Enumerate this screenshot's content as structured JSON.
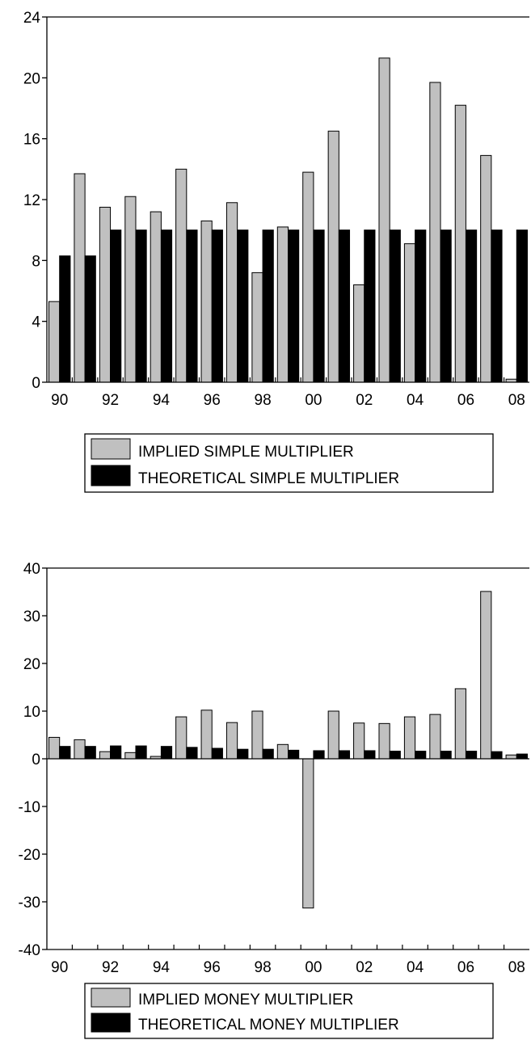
{
  "chart_data": [
    {
      "type": "bar",
      "categories": [
        "90",
        "91",
        "92",
        "93",
        "94",
        "95",
        "96",
        "97",
        "98",
        "99",
        "00",
        "01",
        "02",
        "03",
        "04",
        "05",
        "06",
        "07",
        "08"
      ],
      "x_tick_labels": [
        "90",
        "92",
        "94",
        "96",
        "98",
        "00",
        "02",
        "04",
        "06",
        "08"
      ],
      "y_ticks": [
        0,
        4,
        8,
        12,
        16,
        20,
        24
      ],
      "ylim": [
        0,
        24
      ],
      "title": "",
      "xlabel": "",
      "ylabel": "",
      "grid": false,
      "legend_position": "bottom",
      "series": [
        {
          "name": "IMPLIED SIMPLE MULTIPLIER",
          "color": "#c0c0c0",
          "values": [
            5.3,
            13.7,
            11.5,
            12.2,
            11.2,
            14.0,
            10.6,
            11.8,
            7.2,
            10.2,
            13.8,
            16.5,
            6.4,
            21.3,
            9.1,
            19.7,
            18.2,
            14.9,
            0.2
          ]
        },
        {
          "name": "THEORETICAL SIMPLE MULTIPLIER",
          "color": "#000000",
          "values": [
            8.3,
            8.3,
            10.0,
            10.0,
            10.0,
            10.0,
            10.0,
            10.0,
            10.0,
            10.0,
            10.0,
            10.0,
            10.0,
            10.0,
            10.0,
            10.0,
            10.0,
            10.0,
            10.0
          ]
        }
      ]
    },
    {
      "type": "bar",
      "categories": [
        "90",
        "91",
        "92",
        "93",
        "94",
        "95",
        "96",
        "97",
        "98",
        "99",
        "00",
        "01",
        "02",
        "03",
        "04",
        "05",
        "06",
        "07",
        "08"
      ],
      "x_tick_labels": [
        "90",
        "92",
        "94",
        "96",
        "98",
        "00",
        "02",
        "04",
        "06",
        "08"
      ],
      "y_ticks": [
        -40,
        -30,
        -20,
        -10,
        0,
        10,
        20,
        30,
        40
      ],
      "ylim": [
        -40,
        40
      ],
      "title": "",
      "xlabel": "",
      "ylabel": "",
      "grid": false,
      "legend_position": "bottom",
      "series": [
        {
          "name": "IMPLIED MONEY MULTIPLIER",
          "color": "#c0c0c0",
          "values": [
            4.5,
            4.0,
            1.5,
            1.3,
            0.5,
            8.8,
            10.2,
            7.6,
            10.0,
            3.0,
            -31.3,
            10.0,
            7.5,
            7.4,
            8.8,
            9.3,
            14.7,
            35.1,
            0.8
          ]
        },
        {
          "name": "THEORETICAL MONEY MULTIPLIER",
          "color": "#000000",
          "values": [
            2.6,
            2.6,
            2.7,
            2.7,
            2.6,
            2.4,
            2.2,
            2.0,
            2.0,
            1.8,
            1.7,
            1.7,
            1.7,
            1.6,
            1.6,
            1.6,
            1.6,
            1.5,
            1.0
          ]
        }
      ]
    }
  ]
}
